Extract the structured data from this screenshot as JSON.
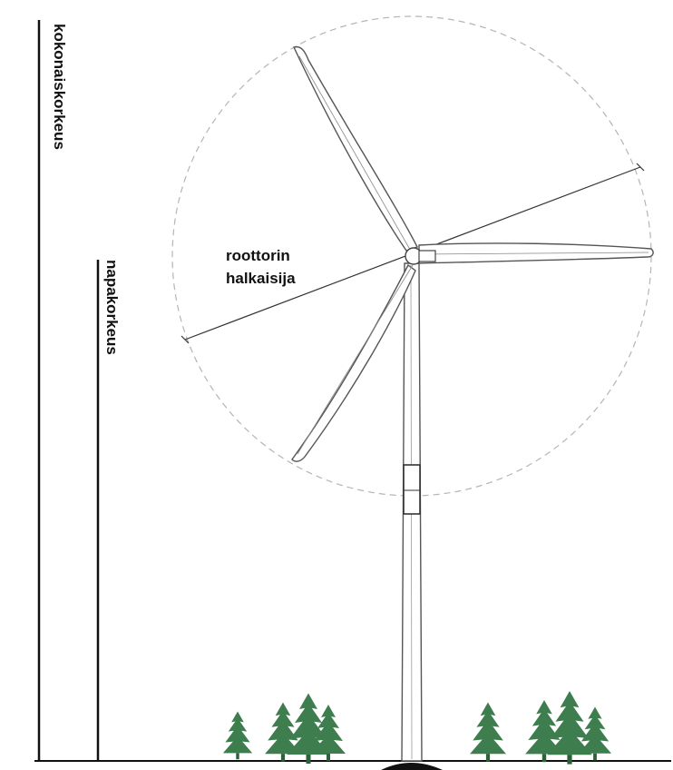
{
  "labels": {
    "total_height": "kokonaiskorkeus",
    "hub_height": "napakorkeus",
    "rotor_diameter_line1": "roottorin",
    "rotor_diameter_line2": "halkaisija"
  },
  "colors": {
    "line": "#111111",
    "turbine_outline": "#555555",
    "rotor_circle": "#b5b5b5",
    "tree": "#3e7d4e",
    "tree_dark": "#2c6139",
    "ground_shadow": "#111111"
  },
  "icons": {
    "tree": "conifer-tree-icon"
  }
}
